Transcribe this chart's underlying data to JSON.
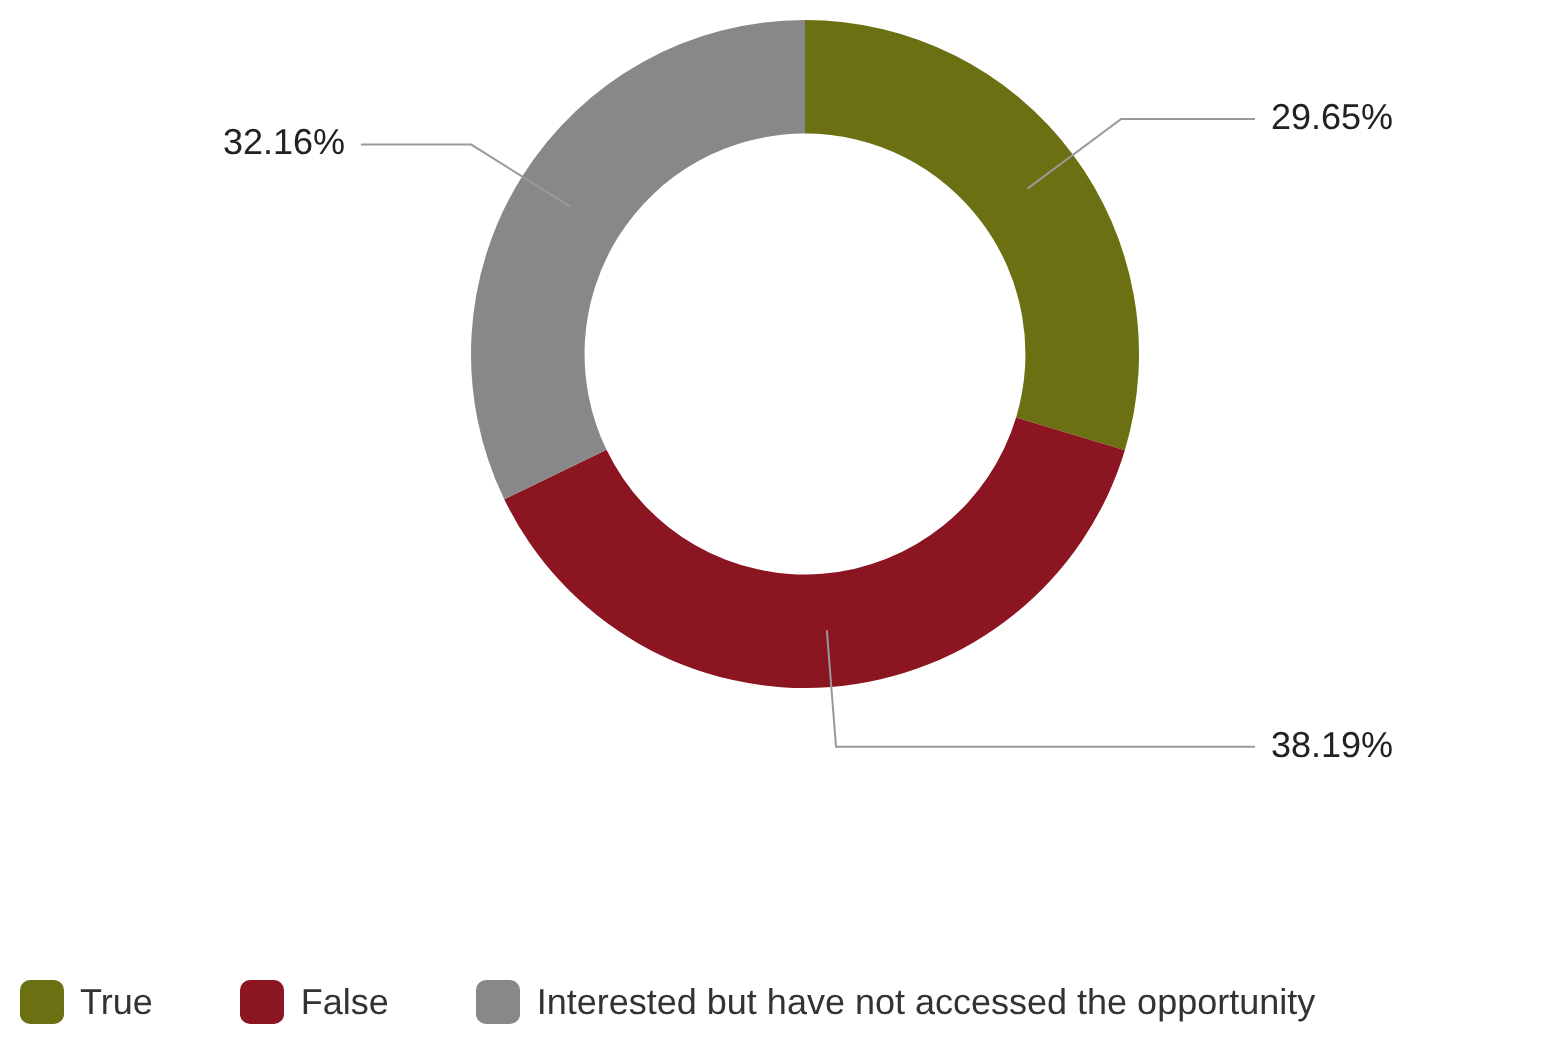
{
  "chart_data": {
    "type": "donut",
    "categories": [
      "True",
      "False",
      "Interested but have not accessed the opportunity"
    ],
    "values": [
      29.65,
      38.19,
      32.16
    ],
    "colors": [
      "#6b7012",
      "#8b1520",
      "#888888"
    ],
    "value_labels": [
      "29.65%",
      "38.19%",
      "32.16%"
    ],
    "legend": "bottom"
  }
}
